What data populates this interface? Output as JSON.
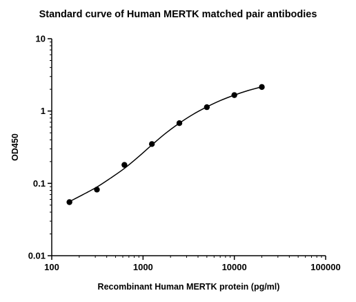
{
  "chart_data": {
    "type": "scatter",
    "title": "Standard curve of Human MERTK matched pair antibodies",
    "xlabel": "Recombinant Human MERTK protein (pg/ml)",
    "ylabel": "OD450",
    "x_scale": "log",
    "y_scale": "log",
    "xlim": [
      100,
      100000
    ],
    "ylim": [
      0.01,
      10
    ],
    "x_ticks": [
      100,
      1000,
      10000,
      100000
    ],
    "x_tick_labels": [
      "100",
      "1000",
      "10000",
      "100000"
    ],
    "y_ticks": [
      0.01,
      0.1,
      1,
      10
    ],
    "y_tick_labels": [
      "0.01",
      "0.1",
      "1",
      "10"
    ],
    "grid": false,
    "legend": "none",
    "series": [
      {
        "x": [
          156.25,
          312.5,
          625,
          1250,
          2500,
          5000,
          10000,
          20000
        ],
        "y": [
          0.055,
          0.082,
          0.18,
          0.35,
          0.68,
          1.13,
          1.66,
          2.15
        ],
        "marker": "circle",
        "color": "#000000",
        "fit": "4PL"
      }
    ],
    "fit_curve": {
      "x": [
        156.25,
        220,
        312.5,
        440,
        625,
        880,
        1250,
        1760,
        2500,
        3530,
        5000,
        7070,
        10000,
        14140,
        20000
      ],
      "y": [
        0.056,
        0.07,
        0.089,
        0.118,
        0.161,
        0.23,
        0.34,
        0.49,
        0.68,
        0.9,
        1.14,
        1.4,
        1.66,
        1.92,
        2.16
      ]
    }
  }
}
